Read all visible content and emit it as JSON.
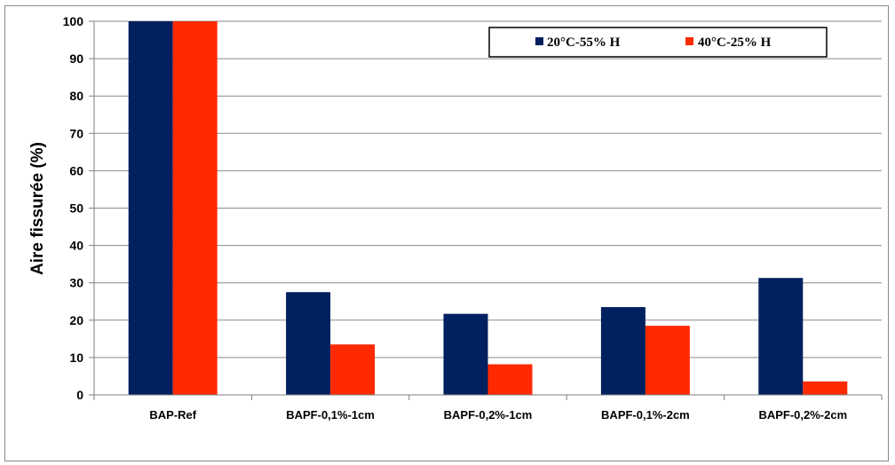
{
  "chart_data": {
    "type": "bar",
    "title": "",
    "xlabel": "",
    "ylabel": "Aire fissurée (%)",
    "ylim": [
      0,
      100
    ],
    "yticks": [
      0,
      10,
      20,
      30,
      40,
      50,
      60,
      70,
      80,
      90,
      100
    ],
    "grid": true,
    "legend_position": "top-right",
    "categories": [
      "BAP-Ref",
      "BAPF-0,1%-1cm",
      "BAPF-0,2%-1cm",
      "BAPF-0,1%-2cm",
      "BAPF-0,2%-2cm"
    ],
    "series": [
      {
        "name": "20°C-55% H",
        "color": "#002060",
        "values": [
          100,
          27.5,
          21.7,
          23.5,
          31.3
        ]
      },
      {
        "name": "40°C-25% H",
        "color": "#FF2A00",
        "values": [
          100,
          13.5,
          8.2,
          18.5,
          3.6
        ]
      }
    ]
  }
}
